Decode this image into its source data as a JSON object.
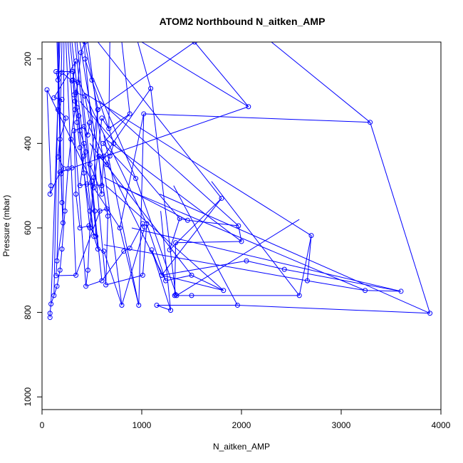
{
  "chart_data": {
    "type": "line",
    "title": "ATOM2 Northbound N_aitken_AMP",
    "xlabel": "N_aitken_AMP",
    "ylabel": "Pressure (mbar)",
    "xlim": [
      0,
      4000
    ],
    "ylim": [
      1030,
      160
    ],
    "y_reversed": true,
    "xticks": [
      0,
      1000,
      2000,
      3000,
      4000
    ],
    "yticks": [
      200,
      400,
      600,
      800,
      1000
    ],
    "grid": false,
    "legend": "none",
    "series": [
      {
        "color": "#0000ff",
        "marker": "open-circle",
        "points": [
          [
            80,
            812
          ],
          [
            80,
            802
          ],
          [
            90,
            780
          ],
          [
            120,
            760
          ],
          [
            150,
            738
          ],
          [
            180,
            700
          ],
          [
            200,
            650
          ],
          [
            230,
            560
          ],
          [
            260,
            460
          ],
          [
            290,
            390
          ],
          [
            330,
            320
          ],
          [
            360,
            255
          ],
          [
            390,
            185
          ],
          [
            430,
            160
          ],
          [
            560,
            320
          ],
          [
            520,
            480
          ],
          [
            480,
            600
          ],
          [
            460,
            700
          ],
          [
            440,
            738
          ],
          [
            600,
            725
          ],
          [
            820,
            655
          ],
          [
            880,
            648
          ],
          [
            1010,
            590
          ],
          [
            1030,
            598
          ],
          [
            800,
            783
          ],
          [
            620,
            655
          ],
          [
            560,
            650
          ],
          [
            520,
            620
          ],
          [
            480,
            560
          ],
          [
            420,
            470
          ],
          [
            380,
            410
          ],
          [
            350,
            350
          ],
          [
            330,
            300
          ],
          [
            310,
            250
          ],
          [
            340,
            205
          ],
          [
            120,
            292
          ],
          [
            200,
            296
          ],
          [
            160,
            320
          ],
          [
            240,
            340
          ],
          [
            180,
            390
          ],
          [
            160,
            432
          ],
          [
            220,
            460
          ],
          [
            190,
            472
          ],
          [
            200,
            540
          ],
          [
            210,
            588
          ],
          [
            150,
            678
          ],
          [
            140,
            713
          ],
          [
            340,
            712
          ],
          [
            580,
            560
          ],
          [
            650,
            555
          ],
          [
            660,
            572
          ],
          [
            640,
            735
          ],
          [
            1010,
            712
          ],
          [
            1050,
            590
          ],
          [
            1240,
            725
          ],
          [
            1500,
            712
          ],
          [
            1820,
            748
          ],
          [
            1200,
            712
          ],
          [
            1800,
            530
          ],
          [
            1280,
            652
          ],
          [
            1380,
            578
          ],
          [
            1460,
            582
          ],
          [
            1970,
            595
          ],
          [
            2000,
            632
          ],
          [
            1340,
            635
          ],
          [
            1330,
            760
          ],
          [
            1500,
            760
          ],
          [
            2580,
            760
          ],
          [
            2700,
            618
          ],
          [
            2660,
            725
          ],
          [
            3240,
            748
          ],
          [
            3600,
            750
          ],
          [
            2430,
            698
          ],
          [
            2050,
            678
          ],
          [
            1200,
            712
          ],
          [
            1100,
            652
          ],
          [
            1290,
            795
          ],
          [
            1150,
            783
          ],
          [
            1960,
            783
          ],
          [
            3890,
            802
          ],
          [
            3290,
            350
          ],
          [
            1020,
            330
          ],
          [
            970,
            783
          ],
          [
            780,
            600
          ],
          [
            520,
            505
          ],
          [
            600,
            340
          ],
          [
            670,
            365
          ],
          [
            880,
            330
          ],
          [
            610,
            400
          ],
          [
            940,
            483
          ],
          [
            1350,
            760
          ],
          [
            1340,
            758
          ],
          [
            1090,
            270
          ],
          [
            620,
            430
          ],
          [
            600,
            500
          ],
          [
            450,
            496
          ],
          [
            380,
            500
          ],
          [
            420,
            430
          ],
          [
            440,
            420
          ],
          [
            420,
            400
          ],
          [
            380,
            370
          ],
          [
            370,
            335
          ],
          [
            350,
            315
          ],
          [
            320,
            285
          ],
          [
            310,
            230
          ],
          [
            140,
            230
          ],
          [
            160,
            250
          ],
          [
            200,
            232
          ],
          [
            300,
            252
          ],
          [
            360,
            255
          ],
          [
            340,
            280
          ],
          [
            430,
            288
          ],
          [
            480,
            350
          ],
          [
            460,
            380
          ],
          [
            420,
            360
          ],
          [
            320,
            370
          ],
          [
            340,
            520
          ],
          [
            380,
            600
          ],
          [
            470,
            595
          ],
          [
            540,
            620
          ],
          [
            530,
            560
          ],
          [
            500,
            490
          ],
          [
            50,
            273
          ],
          [
            90,
            500
          ],
          [
            80,
            520
          ],
          [
            180,
            468
          ],
          [
            300,
            458
          ],
          [
            2070,
            313
          ],
          [
            1530,
            160
          ],
          [
            560,
            320
          ],
          [
            480,
            450
          ],
          [
            600,
            520
          ],
          [
            570,
            430
          ],
          [
            650,
            450
          ],
          [
            680,
            430
          ],
          [
            720,
            400
          ],
          [
            500,
            250
          ],
          [
            430,
            200
          ]
        ]
      }
    ],
    "extra_segments": [
      [
        [
          2070,
          313
        ],
        [
          1000,
          160
        ]
      ],
      [
        [
          3290,
          350
        ],
        [
          2300,
          160
        ]
      ],
      [
        [
          1090,
          270
        ],
        [
          960,
          160
        ]
      ],
      [
        [
          880,
          330
        ],
        [
          800,
          160
        ]
      ],
      [
        [
          1530,
          160
        ],
        [
          1500,
          160
        ]
      ],
      [
        [
          670,
          365
        ],
        [
          680,
          160
        ]
      ],
      [
        [
          2580,
          760
        ],
        [
          1700,
          490
        ]
      ],
      [
        [
          3890,
          802
        ],
        [
          1180,
          520
        ]
      ],
      [
        [
          3600,
          750
        ],
        [
          900,
          600
        ]
      ],
      [
        [
          3240,
          748
        ],
        [
          760,
          500
        ]
      ],
      [
        [
          2700,
          618
        ],
        [
          420,
          280
        ]
      ],
      [
        [
          2660,
          725
        ],
        [
          620,
          640
        ]
      ],
      [
        [
          1970,
          595
        ],
        [
          580,
          300
        ]
      ],
      [
        [
          2000,
          632
        ],
        [
          640,
          390
        ]
      ],
      [
        [
          1800,
          530
        ],
        [
          560,
          160
        ]
      ],
      [
        [
          1460,
          582
        ],
        [
          620,
          480
        ]
      ],
      [
        [
          1380,
          578
        ],
        [
          380,
          300
        ]
      ],
      [
        [
          1500,
          712
        ],
        [
          480,
          400
        ]
      ],
      [
        [
          1820,
          748
        ],
        [
          640,
          500
        ]
      ],
      [
        [
          1240,
          725
        ],
        [
          450,
          350
        ]
      ],
      [
        [
          1050,
          590
        ],
        [
          360,
          250
        ]
      ],
      [
        [
          940,
          483
        ],
        [
          520,
          250
        ]
      ],
      [
        [
          1020,
          330
        ],
        [
          780,
          600
        ]
      ],
      [
        [
          970,
          783
        ],
        [
          620,
          380
        ]
      ],
      [
        [
          1290,
          795
        ],
        [
          1190,
          560
        ]
      ],
      [
        [
          1960,
          783
        ],
        [
          1320,
          500
        ]
      ],
      [
        [
          1350,
          760
        ],
        [
          2580,
          580
        ]
      ],
      [
        [
          800,
          783
        ],
        [
          460,
          160
        ]
      ],
      [
        [
          640,
          735
        ],
        [
          420,
          160
        ]
      ],
      [
        [
          660,
          572
        ],
        [
          380,
          160
        ]
      ],
      [
        [
          600,
          725
        ],
        [
          350,
          160
        ]
      ],
      [
        [
          560,
          650
        ],
        [
          330,
          160
        ]
      ],
      [
        [
          520,
          620
        ],
        [
          300,
          160
        ]
      ],
      [
        [
          480,
          600
        ],
        [
          280,
          160
        ]
      ],
      [
        [
          440,
          738
        ],
        [
          260,
          160
        ]
      ],
      [
        [
          340,
          712
        ],
        [
          240,
          160
        ]
      ],
      [
        [
          210,
          588
        ],
        [
          220,
          160
        ]
      ],
      [
        [
          150,
          678
        ],
        [
          200,
          160
        ]
      ],
      [
        [
          90,
          780
        ],
        [
          180,
          160
        ]
      ],
      [
        [
          120,
          760
        ],
        [
          170,
          160
        ]
      ],
      [
        [
          200,
          540
        ],
        [
          160,
          160
        ]
      ],
      [
        [
          190,
          472
        ],
        [
          150,
          160
        ]
      ]
    ]
  }
}
